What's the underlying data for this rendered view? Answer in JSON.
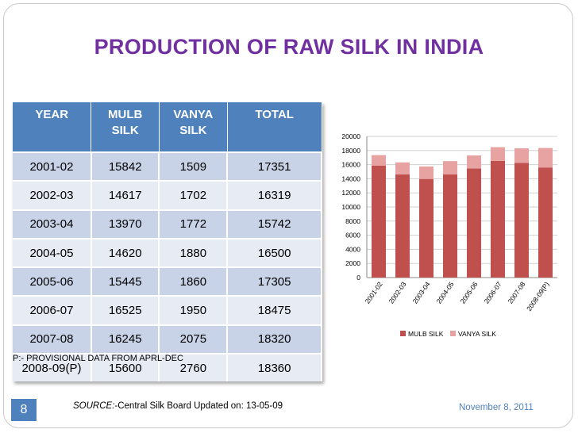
{
  "title": "PRODUCTION OF RAW SILK IN INDIA",
  "table": {
    "headers": [
      [
        "YEAR"
      ],
      [
        "MULB",
        "SILK"
      ],
      [
        "VANYA",
        "SILK"
      ],
      [
        "TOTAL"
      ]
    ],
    "rows": [
      [
        "2001-02",
        "15842",
        "1509",
        "17351"
      ],
      [
        "2002-03",
        "14617",
        "1702",
        "16319"
      ],
      [
        "2003-04",
        "13970",
        "1772",
        "15742"
      ],
      [
        "2004-05",
        "14620",
        "1880",
        "16500"
      ],
      [
        "2005-06",
        "15445",
        "1860",
        "17305"
      ],
      [
        "2006-07",
        "16525",
        "1950",
        "18475"
      ],
      [
        "2007-08",
        "16245",
        "2075",
        "18320"
      ],
      [
        "2008-09(P)",
        "15600",
        "2760",
        "18360"
      ]
    ]
  },
  "note": "P:- PROVISIONAL DATA FROM APRL-DEC",
  "slide_number": "8",
  "source": {
    "label": "SOURCE:",
    "text": "-Central Silk Board Updated on: 13-05-09"
  },
  "date": "November 8, 2011",
  "colors": {
    "title": "#7030a0",
    "header": "#4f81bd",
    "mulb": "#c0504d",
    "vanya": "#e6a3a1"
  },
  "chart_data": {
    "type": "bar",
    "stacked": true,
    "categories": [
      "2001-02",
      "2002-03",
      "2003-04",
      "2004-05",
      "2005-06",
      "2006-07",
      "2007-08",
      "2008-09(P)"
    ],
    "series": [
      {
        "name": "MULB SILK",
        "values": [
          15842,
          14617,
          13970,
          14620,
          15445,
          16525,
          16245,
          15600
        ]
      },
      {
        "name": "VANYA SILK",
        "values": [
          1509,
          1702,
          1772,
          1880,
          1860,
          1950,
          2075,
          2760
        ]
      }
    ],
    "ylim": [
      0,
      20000
    ],
    "yticks": [
      0,
      2000,
      4000,
      6000,
      8000,
      10000,
      12000,
      14000,
      16000,
      18000,
      20000
    ],
    "legend_position": "bottom"
  }
}
